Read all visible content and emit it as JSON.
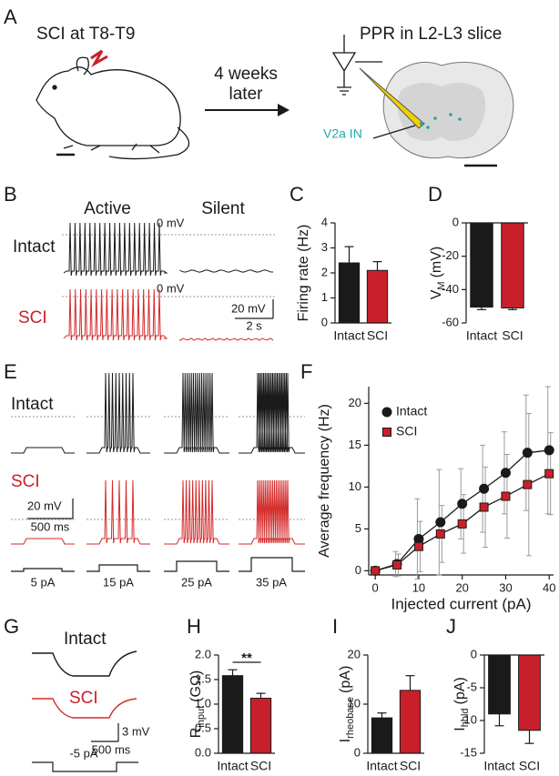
{
  "panel_letters": [
    "A",
    "B",
    "C",
    "D",
    "E",
    "F",
    "G",
    "H",
    "I",
    "J"
  ],
  "panel_a": {
    "left_title": "SCI at T8-T9",
    "arrow_text": [
      "4 weeks",
      "later"
    ],
    "right_title": "PPR in L2-L3 slice",
    "cell_label": "V2a IN"
  },
  "panel_b": {
    "columns": [
      "Active",
      "Silent"
    ],
    "rows": [
      "Intact",
      "SCI"
    ],
    "zero_labels": [
      "0 mV",
      "0 mV"
    ],
    "scale_v": "20 mV",
    "scale_t": "2 s"
  },
  "panel_e": {
    "rows": [
      "Intact",
      "SCI"
    ],
    "scale_v": "20 mV",
    "scale_t": "500 ms",
    "steps": [
      "5 pA",
      "15 pA",
      "25 pA",
      "35 pA"
    ]
  },
  "panel_g": {
    "rows": [
      "Intact",
      "SCI"
    ],
    "scale_v": "3 mV",
    "scale_t": "500 ms",
    "step": "-5 pA"
  },
  "chart_data": [
    {
      "type": "bar",
      "categories": [
        "Intact",
        "SCI"
      ],
      "values": [
        2.4,
        2.1
      ],
      "errors": [
        0.65,
        0.35
      ],
      "colors": [
        "#1a1a1a",
        "#c8202a"
      ],
      "y_label": "Firing rate (Hz)",
      "ylim": [
        0,
        4
      ],
      "yticks": [
        0,
        1,
        2,
        3,
        4
      ]
    },
    {
      "type": "bar",
      "categories": [
        "Intact",
        "SCI"
      ],
      "values": [
        -50.5,
        -51
      ],
      "errors": [
        1.5,
        1
      ],
      "colors": [
        "#1a1a1a",
        "#c8202a"
      ],
      "y_label": "V",
      "y_label_sub": "M",
      "y_label_unit": "(mV)",
      "ylim": [
        -60,
        0
      ],
      "yticks": [
        0,
        -20,
        -40,
        -60
      ]
    },
    {
      "type": "line",
      "x": [
        0,
        5,
        10,
        15,
        20,
        25,
        30,
        35,
        40
      ],
      "series": [
        {
          "name": "Intact",
          "color": "#1a1a1a",
          "marker": "circle",
          "values": [
            0,
            0.8,
            3.8,
            5.8,
            8,
            9.8,
            11.7,
            14.1,
            14.4
          ],
          "errors": [
            0,
            1.5,
            4.8,
            6.3,
            4.2,
            5.2,
            4.9,
            6.9,
            7.6
          ]
        },
        {
          "name": "SCI",
          "color": "#c8202a",
          "marker": "square",
          "values": [
            0,
            0.7,
            2.9,
            4.4,
            5.6,
            7.6,
            8.9,
            10.3,
            11.6
          ],
          "errors": [
            0,
            1.3,
            3,
            3.4,
            3.5,
            4.8,
            5,
            8.5,
            4.9
          ]
        }
      ],
      "x_label": "Injected current (pA)",
      "y_label": "Average frequency (Hz)",
      "xlim": [
        -1.5,
        41
      ],
      "ylim": [
        -0.5,
        22
      ],
      "xticks": [
        0,
        10,
        20,
        30,
        40
      ],
      "yticks": [
        0,
        5,
        10,
        15,
        20
      ],
      "legend": "upper left",
      "error_color": "#9a9a9a"
    },
    {
      "type": "bar",
      "categories": [
        "Intact",
        "SCI"
      ],
      "values": [
        1.58,
        1.12
      ],
      "errors": [
        0.12,
        0.1
      ],
      "colors": [
        "#1a1a1a",
        "#c8202a"
      ],
      "y_label": "R",
      "y_label_sub": "input",
      "y_label_unit": "(GΩ)",
      "annotation": "**",
      "ylim": [
        0,
        2
      ],
      "yticks": [
        {
          "value": 0,
          "label": "0.0"
        },
        0.5,
        {
          "value": 1,
          "label": "1.0"
        },
        1.5,
        {
          "value": 2,
          "label": "2.0"
        }
      ]
    },
    {
      "type": "bar",
      "categories": [
        "Intact",
        "SCI"
      ],
      "values": [
        7.2,
        12.8
      ],
      "errors": [
        1,
        3
      ],
      "colors": [
        "#1a1a1a",
        "#c8202a"
      ],
      "y_label": "I",
      "y_label_sub": "rheobase",
      "y_label_unit": "(pA)",
      "ylim": [
        0,
        20
      ],
      "yticks": [
        0,
        10,
        20
      ]
    },
    {
      "type": "bar",
      "categories": [
        "Intact",
        "SCI"
      ],
      "values": [
        -9,
        -11.5
      ],
      "errors": [
        1.8,
        2
      ],
      "colors": [
        "#1a1a1a",
        "#c8202a"
      ],
      "y_label": "I",
      "y_label_sub": "hold",
      "y_label_unit": "(pA)",
      "ylim": [
        -15,
        0
      ],
      "yticks": [
        0,
        -5,
        -10,
        -15
      ]
    }
  ]
}
